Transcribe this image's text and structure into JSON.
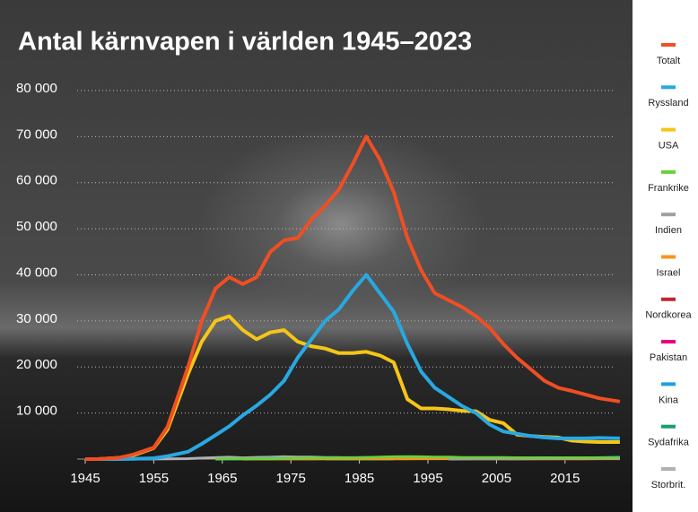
{
  "chart_data": {
    "type": "line",
    "title": "Antal kärnvapen i världen 1945–2023",
    "x": [
      1945,
      1947,
      1950,
      1952,
      1955,
      1957,
      1960,
      1962,
      1964,
      1966,
      1968,
      1970,
      1972,
      1974,
      1976,
      1978,
      1980,
      1982,
      1984,
      1986,
      1988,
      1990,
      1992,
      1994,
      1996,
      1998,
      2000,
      2002,
      2004,
      2006,
      2008,
      2010,
      2012,
      2014,
      2016,
      2018,
      2020,
      2023
    ],
    "xlim": [
      1945,
      2023
    ],
    "xticks": [
      1945,
      1955,
      1965,
      1975,
      1985,
      1995,
      2005,
      2015
    ],
    "ylim": [
      0,
      80000
    ],
    "yticks": [
      {
        "value": 10000,
        "label": "10 000"
      },
      {
        "value": 20000,
        "label": "20 000"
      },
      {
        "value": 30000,
        "label": "30 000"
      },
      {
        "value": 40000,
        "label": "40 000"
      },
      {
        "value": 50000,
        "label": "50 000"
      },
      {
        "value": 60000,
        "label": "60 000"
      },
      {
        "value": 70000,
        "label": "70 000"
      },
      {
        "value": 80000,
        "label": "80 000"
      }
    ],
    "grid": true,
    "legend": "right",
    "series": [
      {
        "name": "Totalt",
        "color": "#f04e23",
        "values": [
          2,
          13,
          300,
          1000,
          2500,
          7000,
          20000,
          30000,
          37000,
          39500,
          38000,
          39500,
          45000,
          47500,
          48000,
          52000,
          55000,
          58500,
          64000,
          70000,
          65000,
          58000,
          48000,
          41000,
          36000,
          34500,
          33000,
          31000,
          28500,
          25000,
          22000,
          19500,
          17000,
          15500,
          14800,
          14000,
          13200,
          12500
        ]
      },
      {
        "name": "Ryssland",
        "color": "#29a8e0",
        "values": [
          0,
          0,
          5,
          50,
          200,
          650,
          1600,
          3300,
          5200,
          7100,
          9500,
          11600,
          14000,
          17000,
          22000,
          26000,
          30000,
          32500,
          36500,
          40000,
          36000,
          32000,
          25000,
          19000,
          15500,
          13500,
          11500,
          10000,
          7500,
          6000,
          5500,
          5000,
          4700,
          4500,
          4500,
          4500,
          4600,
          4500
        ]
      },
      {
        "name": "USA",
        "color": "#f5c518",
        "values": [
          2,
          13,
          300,
          800,
          2400,
          6400,
          18500,
          25500,
          30000,
          31000,
          28000,
          26000,
          27500,
          28000,
          25500,
          24500,
          24000,
          23000,
          23000,
          23300,
          22500,
          21000,
          13000,
          11000,
          11000,
          10800,
          10500,
          10400,
          8500,
          7800,
          5300,
          5000,
          4800,
          4700,
          4000,
          3800,
          3700,
          3700
        ]
      },
      {
        "name": "Frankrike",
        "color": "#6ccf3f",
        "values": [
          null,
          null,
          null,
          null,
          null,
          null,
          null,
          null,
          4,
          36,
          36,
          36,
          45,
          145,
          188,
          235,
          250,
          275,
          280,
          355,
          420,
          505,
          540,
          510,
          450,
          450,
          350,
          350,
          350,
          350,
          300,
          300,
          300,
          300,
          300,
          290,
          290,
          290
        ]
      },
      {
        "name": "Indien",
        "color": "#a0a0a0",
        "values": [
          null,
          null,
          null,
          null,
          null,
          null,
          null,
          null,
          null,
          null,
          null,
          null,
          null,
          null,
          null,
          null,
          null,
          null,
          null,
          null,
          null,
          null,
          null,
          null,
          null,
          8,
          13,
          30,
          40,
          50,
          60,
          70,
          90,
          100,
          120,
          130,
          150,
          164
        ]
      },
      {
        "name": "Israel",
        "color": "#f7941d",
        "values": [
          null,
          null,
          null,
          null,
          null,
          null,
          null,
          null,
          null,
          null,
          4,
          13,
          20,
          20,
          20,
          25,
          31,
          40,
          44,
          52,
          55,
          60,
          65,
          70,
          75,
          80,
          80,
          80,
          80,
          80,
          80,
          80,
          80,
          80,
          80,
          80,
          90,
          90
        ]
      },
      {
        "name": "Nordkorea",
        "color": "#c1272d",
        "values": [
          null,
          null,
          null,
          null,
          null,
          null,
          null,
          null,
          null,
          null,
          null,
          null,
          null,
          null,
          null,
          null,
          null,
          null,
          null,
          null,
          null,
          null,
          null,
          null,
          null,
          null,
          null,
          null,
          null,
          2,
          4,
          6,
          8,
          10,
          15,
          20,
          30,
          30
        ]
      },
      {
        "name": "Pakistan",
        "color": "#e6007e",
        "values": [
          null,
          null,
          null,
          null,
          null,
          null,
          null,
          null,
          null,
          null,
          null,
          null,
          null,
          null,
          null,
          null,
          null,
          null,
          null,
          null,
          null,
          null,
          null,
          null,
          null,
          5,
          25,
          30,
          40,
          50,
          70,
          90,
          100,
          120,
          140,
          150,
          160,
          170
        ]
      },
      {
        "name": "Kina",
        "color": "#1fa0e0",
        "values": [
          null,
          null,
          null,
          null,
          null,
          null,
          null,
          null,
          1,
          20,
          40,
          75,
          130,
          160,
          180,
          200,
          205,
          210,
          220,
          225,
          230,
          232,
          234,
          234,
          235,
          235,
          230,
          230,
          235,
          235,
          240,
          245,
          250,
          260,
          270,
          280,
          320,
          410
        ]
      },
      {
        "name": "Sydafrika",
        "color": "#1aa06a",
        "values": [
          null,
          null,
          null,
          null,
          null,
          null,
          null,
          null,
          null,
          null,
          null,
          null,
          null,
          null,
          null,
          null,
          1,
          2,
          3,
          4,
          5,
          6,
          null,
          null,
          null,
          null,
          null,
          null,
          null,
          null,
          null,
          null,
          null,
          null,
          null,
          null,
          null,
          null
        ]
      },
      {
        "name": "Storbrit.",
        "color": "#b0b0b0",
        "values": [
          null,
          null,
          null,
          1,
          10,
          40,
          105,
          205,
          310,
          405,
          280,
          375,
          400,
          500,
          450,
          450,
          350,
          335,
          320,
          350,
          350,
          350,
          350,
          250,
          300,
          280,
          280,
          280,
          280,
          225,
          225,
          225,
          225,
          225,
          215,
          215,
          215,
          225
        ]
      }
    ]
  }
}
